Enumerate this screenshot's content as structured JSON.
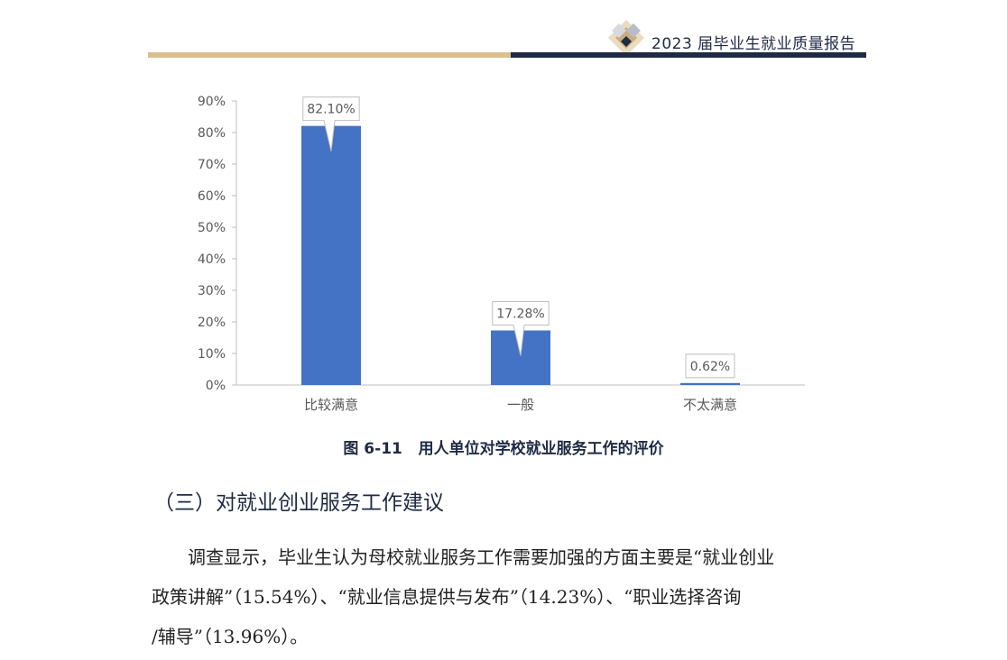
{
  "header": {
    "title": "2023 届毕业生就业质量报告",
    "logo_icon": "diamond-logo-icon"
  },
  "colors": {
    "header_gold": "#d9c08f",
    "header_navy": "#1f2a44",
    "bar_blue": "#4472c4",
    "axis_text": "#595959"
  },
  "chart_data": {
    "type": "bar",
    "categories": [
      "比较满意",
      "一般",
      "不太满意"
    ],
    "values": [
      82.1,
      17.28,
      0.62
    ],
    "value_labels": [
      "82.10%",
      "17.28%",
      "0.62%"
    ],
    "y_ticks": [
      "0%",
      "10%",
      "20%",
      "30%",
      "40%",
      "50%",
      "60%",
      "70%",
      "80%",
      "90%"
    ],
    "ylim": [
      0,
      90
    ],
    "title": "",
    "xlabel": "",
    "ylabel": "",
    "grid": false,
    "legend": "none"
  },
  "figure": {
    "caption": "图 6-11   用人单位对学校就业服务工作的评价"
  },
  "section": {
    "heading": "（三）对就业创业服务工作建议",
    "lines": [
      "调查显示，毕业生认为母校就业服务工作需要加强的方面主要是“就业创业",
      "政策讲解”（15.54%）、“就业信息提供与发布”（14.23%）、“职业选择咨询",
      "/辅导”（13.96%）。"
    ]
  }
}
